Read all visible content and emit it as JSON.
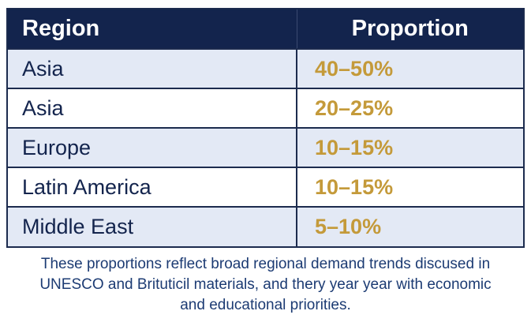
{
  "table": {
    "headers": {
      "region": "Region",
      "proportion": "Proportion"
    },
    "rows": [
      {
        "region": "Asia",
        "proportion": "40–50%"
      },
      {
        "region": "Asia",
        "proportion": "20–25%"
      },
      {
        "region": "Europe",
        "proportion": "10–15%"
      },
      {
        "region": "Latin America",
        "proportion": "10–15%"
      },
      {
        "region": "Middle East",
        "proportion": "5–10%"
      }
    ]
  },
  "caption": {
    "line1": "These proportions reflect broad regional demand trends discused in",
    "line2": "UNESCO and Brituticil materials, and thery year year with economic",
    "line3": "and educational priorities."
  },
  "colors": {
    "header_bg": "#13244d",
    "row_alt_bg": "#e3e9f5",
    "region_text": "#13244d",
    "proportion_text": "#c49a3a",
    "caption_text": "#1c3b73"
  }
}
